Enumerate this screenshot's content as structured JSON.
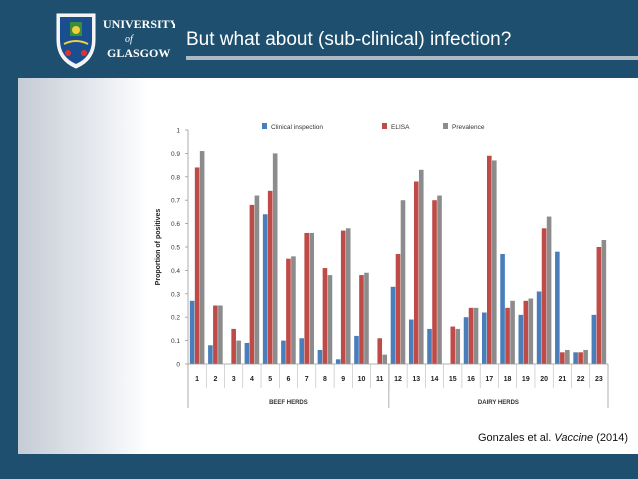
{
  "header": {
    "university_line1": "UNIVERSITY",
    "university_of": "of",
    "university_line2": "GLASGOW",
    "title": "But what about (sub-clinical) infection?"
  },
  "citation": {
    "authors": "Gonzales et al.",
    "journal": "Vaccine",
    "year": "(2014)"
  },
  "colors": {
    "background": "#1f4f6e",
    "clinical": "#4a7ebb",
    "elisa": "#be4b48",
    "prevalence": "#8c8c8c"
  },
  "chart_data": {
    "type": "bar",
    "ylabel": "Proportion of positives",
    "ylim": [
      0,
      1
    ],
    "yticks": [
      "0",
      "0.1",
      "0.2",
      "0.3",
      "0.4",
      "0.5",
      "0.6",
      "0.7",
      "0.8",
      "0.9",
      "1"
    ],
    "categories": [
      "1",
      "2",
      "3",
      "4",
      "5",
      "6",
      "7",
      "8",
      "9",
      "10",
      "11",
      "12",
      "13",
      "14",
      "15",
      "16",
      "17",
      "18",
      "19",
      "20",
      "21",
      "22",
      "23"
    ],
    "groups": [
      {
        "label": "BEEF HERDS",
        "count": 11
      },
      {
        "label": "DAIRY HERDS",
        "count": 12
      }
    ],
    "series": [
      {
        "name": "Clinical inspection",
        "color": "#4a7ebb",
        "values": [
          0.27,
          0.08,
          0.0,
          0.09,
          0.64,
          0.1,
          0.11,
          0.06,
          0.02,
          0.12,
          0.0,
          0.33,
          0.19,
          0.15,
          0.0,
          0.2,
          0.22,
          0.47,
          0.21,
          0.31,
          0.48,
          0.05,
          0.21
        ]
      },
      {
        "name": "ELISA",
        "color": "#be4b48",
        "values": [
          0.84,
          0.25,
          0.15,
          0.68,
          0.74,
          0.45,
          0.56,
          0.41,
          0.57,
          0.38,
          0.11,
          0.47,
          0.78,
          0.7,
          0.16,
          0.24,
          0.89,
          0.24,
          0.27,
          0.58,
          0.05,
          0.05,
          0.5
        ]
      },
      {
        "name": "Prevalence",
        "color": "#8c8c8c",
        "values": [
          0.91,
          0.25,
          0.1,
          0.72,
          0.9,
          0.46,
          0.56,
          0.38,
          0.58,
          0.39,
          0.04,
          0.7,
          0.83,
          0.72,
          0.15,
          0.24,
          0.87,
          0.27,
          0.28,
          0.63,
          0.06,
          0.06,
          0.53
        ]
      }
    ]
  }
}
